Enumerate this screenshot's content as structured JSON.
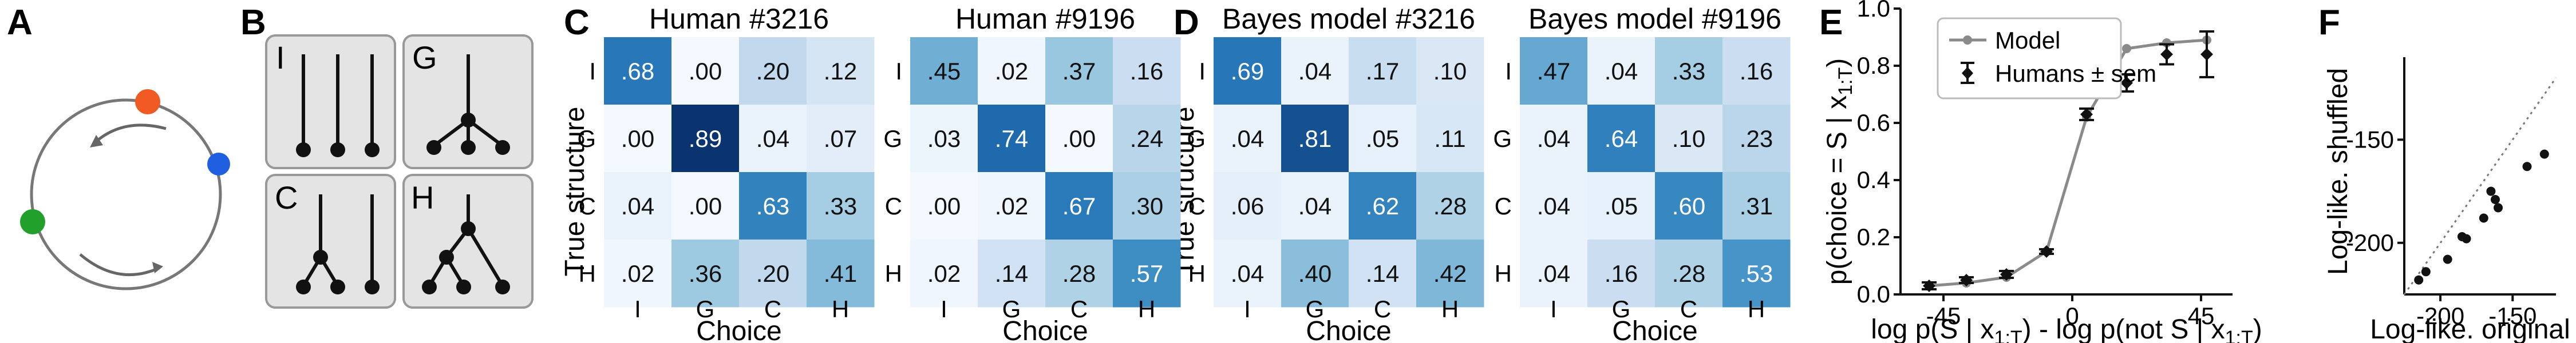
{
  "panel_labels": [
    "A",
    "B",
    "C",
    "D",
    "E",
    "F"
  ],
  "colors": {
    "node_orange": "#f15a22",
    "node_blue": "#1f5fe0",
    "node_green": "#22a02c",
    "box_gray": "#e4e4e4",
    "model_line": "#8a8a8a",
    "heatmap_low": "#f4f9ff",
    "heatmap_high": "#08306b"
  },
  "structures": [
    "I",
    "G",
    "C",
    "H"
  ],
  "heatmaps": {
    "rows": [
      "I",
      "G",
      "C",
      "H"
    ],
    "cols": [
      "I",
      "G",
      "C",
      "H"
    ],
    "ylabel": "True structure",
    "xlabel": "Choice",
    "panels": [
      {
        "title": "Human #3216",
        "labels": [
          [
            ".68",
            ".00",
            ".20",
            ".12"
          ],
          [
            ".00",
            ".89",
            ".04",
            ".07"
          ],
          [
            ".04",
            ".00",
            ".63",
            ".33"
          ],
          [
            ".02",
            ".36",
            ".20",
            ".41"
          ]
        ],
        "values": [
          [
            0.68,
            0.0,
            0.2,
            0.12
          ],
          [
            0.0,
            0.89,
            0.04,
            0.07
          ],
          [
            0.04,
            0.0,
            0.63,
            0.33
          ],
          [
            0.02,
            0.36,
            0.2,
            0.41
          ]
        ]
      },
      {
        "title": "Human #9196",
        "labels": [
          [
            ".45",
            ".02",
            ".37",
            ".16"
          ],
          [
            ".03",
            ".74",
            ".00",
            ".24"
          ],
          [
            ".00",
            ".02",
            ".67",
            ".30"
          ],
          [
            ".02",
            ".14",
            ".28",
            ".57"
          ]
        ],
        "values": [
          [
            0.45,
            0.02,
            0.37,
            0.16
          ],
          [
            0.03,
            0.74,
            0.0,
            0.24
          ],
          [
            0.0,
            0.02,
            0.67,
            0.3
          ],
          [
            0.02,
            0.14,
            0.28,
            0.57
          ]
        ]
      },
      {
        "title": "Bayes model #3216",
        "labels": [
          [
            ".69",
            ".04",
            ".17",
            ".10"
          ],
          [
            ".04",
            ".81",
            ".05",
            ".11"
          ],
          [
            ".06",
            ".04",
            ".62",
            ".28"
          ],
          [
            ".04",
            ".40",
            ".14",
            ".42"
          ]
        ],
        "values": [
          [
            0.69,
            0.04,
            0.17,
            0.1
          ],
          [
            0.04,
            0.81,
            0.05,
            0.11
          ],
          [
            0.06,
            0.04,
            0.62,
            0.28
          ],
          [
            0.04,
            0.4,
            0.14,
            0.42
          ]
        ]
      },
      {
        "title": "Bayes model #9196",
        "labels": [
          [
            ".47",
            ".04",
            ".33",
            ".16"
          ],
          [
            ".04",
            ".64",
            ".10",
            ".23"
          ],
          [
            ".04",
            ".05",
            ".60",
            ".31"
          ],
          [
            ".04",
            ".16",
            ".28",
            ".53"
          ]
        ],
        "values": [
          [
            0.47,
            0.04,
            0.33,
            0.16
          ],
          [
            0.04,
            0.64,
            0.1,
            0.23
          ],
          [
            0.04,
            0.05,
            0.6,
            0.31
          ],
          [
            0.04,
            0.16,
            0.28,
            0.53
          ]
        ]
      }
    ]
  },
  "chart_data": [
    {
      "type": "line",
      "panel": "E",
      "xlabel": "log p(S | x1:T) - log p(not S | x1:T)",
      "ylabel": "p(choice = S | x1:T)",
      "xticks": [
        -45,
        0,
        45
      ],
      "yticks": [
        0.0,
        0.2,
        0.4,
        0.6,
        0.8,
        1.0
      ],
      "ytick_labels": [
        "0.0",
        "0.2",
        "0.4",
        "0.6",
        "0.8",
        "1.0"
      ],
      "xlim": [
        -60,
        56
      ],
      "ylim": [
        0,
        1.0
      ],
      "legend": {
        "position": "top-left",
        "entries": [
          "Model",
          "Humans ± sem"
        ]
      },
      "series": [
        {
          "name": "Model",
          "style": "line",
          "x": [
            -50,
            -37,
            -23,
            -9,
            5,
            19,
            33,
            47
          ],
          "y": [
            0.03,
            0.04,
            0.06,
            0.15,
            0.62,
            0.86,
            0.88,
            0.89
          ]
        },
        {
          "name": "Humans ± sem",
          "style": "errorbar",
          "x": [
            -50,
            -37,
            -23,
            -9,
            5,
            19,
            33,
            47
          ],
          "y": [
            0.03,
            0.05,
            0.07,
            0.15,
            0.63,
            0.74,
            0.84,
            0.84
          ],
          "err": [
            0.012,
            0.01,
            0.012,
            0.008,
            0.02,
            0.03,
            0.035,
            0.08
          ]
        }
      ]
    },
    {
      "type": "scatter",
      "panel": "F",
      "xlabel": "Log-like. original",
      "ylabel": "Log-like. shuffled",
      "xticks": [
        -200,
        -150
      ],
      "yticks": [
        -200,
        -150
      ],
      "xlim": [
        -225,
        -120
      ],
      "ylim": [
        -225,
        -110
      ],
      "reference_line": "identity (dotted)",
      "x": [
        -215,
        -210,
        -195,
        -185,
        -182,
        -170,
        -165,
        -160,
        -162,
        -140,
        -128
      ],
      "y": [
        -218,
        -214,
        -208,
        -197,
        -198,
        -188,
        -175,
        -183,
        -179,
        -163,
        -157
      ]
    }
  ]
}
